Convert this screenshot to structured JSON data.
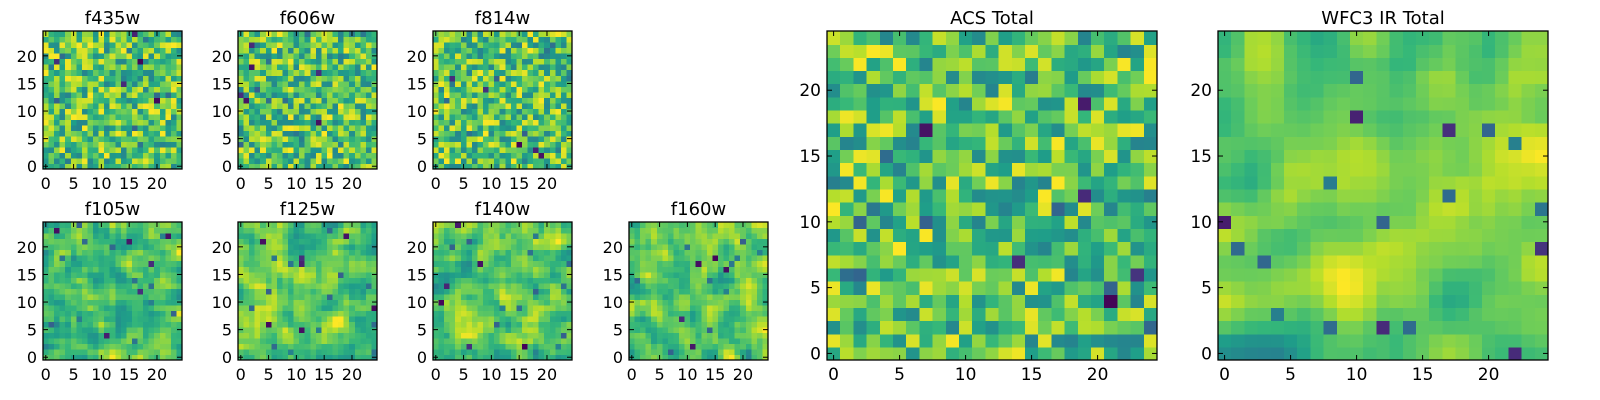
{
  "figure": {
    "panels": [
      {
        "title": "f435w",
        "group": "small",
        "seed": 11,
        "smooth": 0,
        "darks": 5
      },
      {
        "title": "f606w",
        "group": "small",
        "seed": 23,
        "smooth": 0,
        "darks": 6
      },
      {
        "title": "f814w",
        "group": "small",
        "seed": 37,
        "smooth": 0,
        "darks": 5
      },
      {
        "title": "f105w",
        "group": "small",
        "seed": 41,
        "smooth": 1,
        "darks": 6
      },
      {
        "title": "f125w",
        "group": "small",
        "seed": 53,
        "smooth": 1,
        "darks": 7
      },
      {
        "title": "f140w",
        "group": "small",
        "seed": 67,
        "smooth": 1,
        "darks": 6
      },
      {
        "title": "f160w",
        "group": "small",
        "seed": 79,
        "smooth": 1,
        "darks": 5
      },
      {
        "title": "ACS Total",
        "group": "large",
        "seed": 83,
        "smooth": 0,
        "darks": 6
      },
      {
        "title": "WFC3 IR Total",
        "group": "large",
        "seed": 97,
        "smooth": 2,
        "darks": 6
      }
    ]
  },
  "chart_data": [
    {
      "type": "heatmap",
      "title": "f435w",
      "x_ticks": [
        0,
        5,
        10,
        15,
        20
      ],
      "y_ticks": [
        0,
        5,
        10,
        15,
        20
      ],
      "xlim": [
        -0.5,
        24.5
      ],
      "ylim": [
        -0.5,
        24.5
      ],
      "grid_size": [
        25,
        25
      ],
      "colormap": "viridis"
    },
    {
      "type": "heatmap",
      "title": "f606w",
      "x_ticks": [
        0,
        5,
        10,
        15,
        20
      ],
      "y_ticks": [
        0,
        5,
        10,
        15,
        20
      ],
      "xlim": [
        -0.5,
        24.5
      ],
      "ylim": [
        -0.5,
        24.5
      ],
      "grid_size": [
        25,
        25
      ],
      "colormap": "viridis"
    },
    {
      "type": "heatmap",
      "title": "f814w",
      "x_ticks": [
        0,
        5,
        10,
        15,
        20
      ],
      "y_ticks": [
        0,
        5,
        10,
        15,
        20
      ],
      "xlim": [
        -0.5,
        24.5
      ],
      "ylim": [
        -0.5,
        24.5
      ],
      "grid_size": [
        25,
        25
      ],
      "colormap": "viridis"
    },
    {
      "type": "heatmap",
      "title": "f105w",
      "x_ticks": [
        0,
        5,
        10,
        15,
        20
      ],
      "y_ticks": [
        0,
        5,
        10,
        15,
        20
      ],
      "xlim": [
        -0.5,
        24.5
      ],
      "ylim": [
        -0.5,
        24.5
      ],
      "grid_size": [
        25,
        25
      ],
      "colormap": "viridis"
    },
    {
      "type": "heatmap",
      "title": "f125w",
      "x_ticks": [
        0,
        5,
        10,
        15,
        20
      ],
      "y_ticks": [
        0,
        5,
        10,
        15,
        20
      ],
      "xlim": [
        -0.5,
        24.5
      ],
      "ylim": [
        -0.5,
        24.5
      ],
      "grid_size": [
        25,
        25
      ],
      "colormap": "viridis"
    },
    {
      "type": "heatmap",
      "title": "f140w",
      "x_ticks": [
        0,
        5,
        10,
        15,
        20
      ],
      "y_ticks": [
        0,
        5,
        10,
        15,
        20
      ],
      "xlim": [
        -0.5,
        24.5
      ],
      "ylim": [
        -0.5,
        24.5
      ],
      "grid_size": [
        25,
        25
      ],
      "colormap": "viridis"
    },
    {
      "type": "heatmap",
      "title": "f160w",
      "x_ticks": [
        0,
        5,
        10,
        15,
        20
      ],
      "y_ticks": [
        0,
        5,
        10,
        15,
        20
      ],
      "xlim": [
        -0.5,
        24.5
      ],
      "ylim": [
        -0.5,
        24.5
      ],
      "grid_size": [
        25,
        25
      ],
      "colormap": "viridis"
    },
    {
      "type": "heatmap",
      "title": "ACS Total",
      "x_ticks": [
        0,
        5,
        10,
        15,
        20
      ],
      "y_ticks": [
        0,
        5,
        10,
        15,
        20
      ],
      "xlim": [
        -0.5,
        24.5
      ],
      "ylim": [
        -0.5,
        24.5
      ],
      "grid_size": [
        25,
        25
      ],
      "colormap": "viridis"
    },
    {
      "type": "heatmap",
      "title": "WFC3 IR Total",
      "x_ticks": [
        0,
        5,
        10,
        15,
        20
      ],
      "y_ticks": [
        0,
        5,
        10,
        15,
        20
      ],
      "xlim": [
        -0.5,
        24.5
      ],
      "ylim": [
        -0.5,
        24.5
      ],
      "grid_size": [
        25,
        25
      ],
      "colormap": "viridis"
    }
  ]
}
